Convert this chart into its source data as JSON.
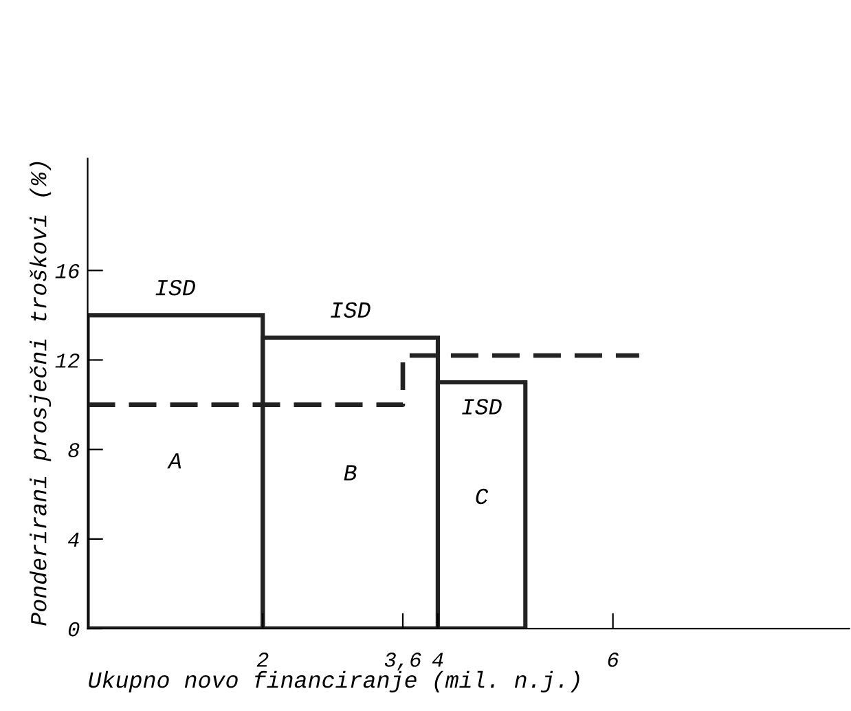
{
  "chart_data": {
    "type": "histogram",
    "xlabel": "Ukupno novo financiranje (mil. n.j.)",
    "ylabel": "Ponderirani prosječni troškovi (%)",
    "series": [
      {
        "bins": [
          0,
          2,
          4,
          5
        ],
        "values": [
          14,
          13,
          11
        ],
        "color": "#222222"
      },
      {
        "type": "step",
        "x": [
          0,
          3.6,
          6.3
        ],
        "values": [
          10,
          12.2,
          12.2
        ],
        "color": "#222222",
        "line_style": "dashed"
      }
    ],
    "xlim": [
      0,
      8.7
    ],
    "ylim": [
      0,
      21
    ],
    "xticks": [
      2,
      {
        "value": 3.6,
        "label": "3,6"
      },
      4,
      6
    ],
    "yticks": [
      0,
      4,
      8,
      12,
      16
    ],
    "annotations": [
      "ISD",
      "ISD",
      "ISD",
      "A",
      "B",
      "C"
    ],
    "grid": false,
    "legend": false
  }
}
